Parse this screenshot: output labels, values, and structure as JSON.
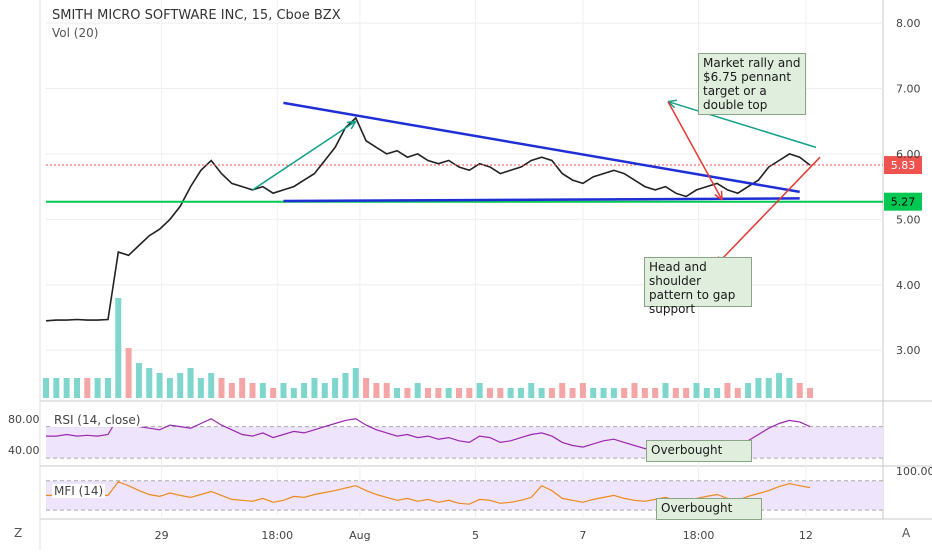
{
  "header": {
    "title": "SMITH MICRO SOFTWARE INC, 15, Cboe BZX",
    "volume_label": "Vol (20)"
  },
  "chart_data": {
    "type": "line",
    "title": "SMITH MICRO SOFTWARE INC, 15, Cboe BZX",
    "price_axis": {
      "ticks": [
        "8.00",
        "7.00",
        "6.00",
        "5.00",
        "4.00",
        "3.00"
      ],
      "ylim": [
        2.3,
        8.2
      ],
      "current_price": "5.83",
      "support_price": "5.27",
      "current_color": "#ef5350",
      "support_color": "#00c853"
    },
    "x_axis": {
      "ticks": [
        "29",
        "18:00",
        "Aug",
        "5",
        "7",
        "18:00",
        "12"
      ]
    },
    "price_series": {
      "name": "",
      "x": [
        0,
        1,
        2,
        3,
        4,
        5,
        6,
        7,
        8,
        9,
        10,
        11,
        12,
        13,
        14,
        15,
        16,
        17,
        18,
        19,
        20,
        21,
        22,
        23,
        24,
        25,
        26,
        27,
        28,
        29,
        30,
        31,
        32,
        33,
        34,
        35,
        36,
        37,
        38,
        39,
        40,
        41,
        42,
        43,
        44,
        45,
        46,
        47,
        48,
        49,
        50,
        51,
        52,
        53,
        54,
        55,
        56,
        57,
        58,
        59,
        60,
        61,
        62,
        63,
        64,
        65,
        66,
        67,
        68,
        69,
        70,
        71,
        72,
        73,
        74,
        75,
        76,
        77,
        78,
        79,
        80
      ],
      "y": [
        3.45,
        3.46,
        3.46,
        3.47,
        3.46,
        3.46,
        3.47,
        4.5,
        4.45,
        4.6,
        4.75,
        4.85,
        5.0,
        5.2,
        5.5,
        5.75,
        5.9,
        5.7,
        5.55,
        5.5,
        5.45,
        5.5,
        5.4,
        5.45,
        5.5,
        5.6,
        5.7,
        5.9,
        6.1,
        6.4,
        6.55,
        6.2,
        6.1,
        6.0,
        6.05,
        5.95,
        6.0,
        5.9,
        5.85,
        5.9,
        5.8,
        5.75,
        5.85,
        5.8,
        5.7,
        5.75,
        5.8,
        5.9,
        5.95,
        5.9,
        5.7,
        5.6,
        5.55,
        5.65,
        5.7,
        5.75,
        5.7,
        5.6,
        5.5,
        5.45,
        5.5,
        5.4,
        5.35,
        5.45,
        5.5,
        5.55,
        5.45,
        5.4,
        5.5,
        5.6,
        5.8,
        5.9,
        6.0,
        5.95,
        5.83,
        null,
        null,
        null,
        null,
        null,
        null
      ]
    },
    "volume_series": {
      "name": "Vol (20)",
      "values": [
        0.2,
        0.2,
        0.2,
        0.2,
        0.2,
        0.2,
        0.2,
        1.0,
        0.5,
        0.35,
        0.3,
        0.25,
        0.2,
        0.25,
        0.3,
        0.2,
        0.25,
        0.2,
        0.15,
        0.2,
        0.15,
        0.15,
        0.1,
        0.15,
        0.1,
        0.15,
        0.2,
        0.15,
        0.2,
        0.25,
        0.3,
        0.2,
        0.15,
        0.15,
        0.1,
        0.1,
        0.15,
        0.1,
        0.1,
        0.1,
        0.1,
        0.1,
        0.15,
        0.1,
        0.1,
        0.1,
        0.1,
        0.15,
        0.1,
        0.1,
        0.15,
        0.1,
        0.15,
        0.1,
        0.1,
        0.1,
        0.1,
        0.15,
        0.1,
        0.1,
        0.15,
        0.1,
        0.1,
        0.15,
        0.1,
        0.1,
        0.15,
        0.1,
        0.15,
        0.2,
        0.2,
        0.25,
        0.2,
        0.15,
        0.1,
        0,
        0,
        0,
        0,
        0,
        0
      ]
    },
    "rsi": {
      "label": "RSI (14, close)",
      "ticks": [
        "80.00",
        "40.00"
      ],
      "overbought_note": "Overbought",
      "values": [
        58,
        58,
        60,
        58,
        59,
        58,
        60,
        82,
        75,
        70,
        68,
        66,
        72,
        70,
        68,
        74,
        80,
        72,
        66,
        60,
        58,
        62,
        56,
        60,
        64,
        62,
        66,
        70,
        74,
        78,
        80,
        72,
        66,
        62,
        58,
        60,
        56,
        58,
        54,
        56,
        52,
        50,
        58,
        56,
        50,
        52,
        56,
        60,
        62,
        58,
        50,
        46,
        44,
        48,
        52,
        54,
        50,
        46,
        42,
        44,
        48,
        42,
        40,
        46,
        50,
        52,
        46,
        44,
        52,
        60,
        68,
        74,
        78,
        76,
        70,
        null,
        null,
        null,
        null,
        null,
        null
      ]
    },
    "mfi": {
      "label": "MFI (14)",
      "tick": "100.00",
      "overbought_note": "Overbought",
      "values": [
        50,
        50,
        50,
        50,
        50,
        50,
        50,
        78,
        70,
        60,
        52,
        48,
        55,
        50,
        46,
        52,
        58,
        50,
        42,
        40,
        38,
        44,
        36,
        40,
        48,
        46,
        52,
        56,
        60,
        65,
        70,
        60,
        52,
        46,
        40,
        44,
        38,
        42,
        36,
        40,
        34,
        32,
        42,
        40,
        34,
        36,
        40,
        46,
        70,
        60,
        44,
        40,
        36,
        42,
        46,
        50,
        44,
        40,
        38,
        42,
        46,
        40,
        36,
        44,
        48,
        52,
        44,
        40,
        48,
        54,
        60,
        68,
        74,
        70,
        66,
        null,
        null,
        null,
        null,
        null,
        null
      ]
    },
    "annotations": {
      "upper": "Market rally and $6.75 pennant target or a double top",
      "lower": "Head and shoulder pattern to gap support"
    },
    "footer": {
      "left_button": "Z",
      "right_button": "A"
    }
  }
}
